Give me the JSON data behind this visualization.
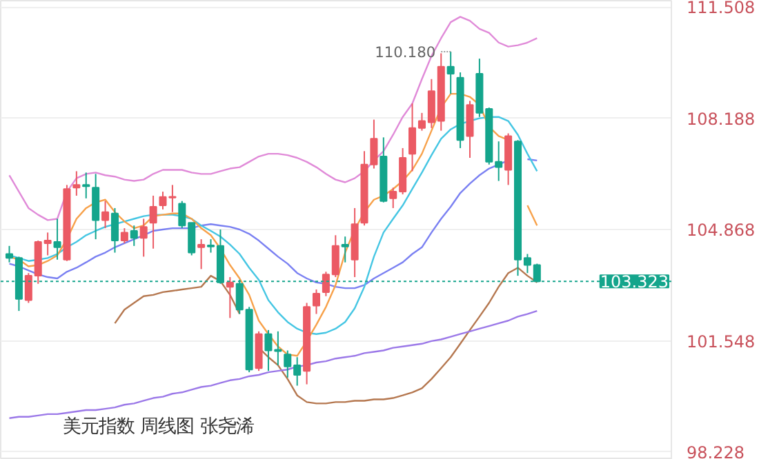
{
  "chart_data": {
    "type": "candlestick",
    "title": "美元指数 周线图 张尧浠",
    "categories": [
      null,
      null,
      null,
      null,
      null,
      null,
      null,
      null,
      null,
      null,
      null,
      null,
      null,
      null,
      null,
      null,
      null,
      null,
      null,
      null,
      null,
      null,
      null,
      null,
      null,
      null,
      null,
      null,
      null,
      null,
      null,
      null,
      null,
      null,
      null,
      null,
      null,
      null,
      null,
      null,
      null,
      null,
      null,
      null,
      null,
      null,
      null,
      null,
      null,
      null,
      null,
      null,
      null,
      null,
      null,
      null
    ],
    "ohlc": [
      [
        104.14,
        104.38,
        103.89,
        104.02
      ],
      [
        104.02,
        104.06,
        102.44,
        102.8
      ],
      [
        102.76,
        103.57,
        102.68,
        103.49
      ],
      [
        103.49,
        104.54,
        103.25,
        104.5
      ],
      [
        104.46,
        104.78,
        104.1,
        104.54
      ],
      [
        104.5,
        105.19,
        103.97,
        104.34
      ],
      [
        103.97,
        106.2,
        103.93,
        106.08
      ],
      [
        106.12,
        106.61,
        105.88,
        106.2
      ],
      [
        106.2,
        106.57,
        105.8,
        106.16
      ],
      [
        106.12,
        106.53,
        104.58,
        105.15
      ],
      [
        105.15,
        105.72,
        104.91,
        105.39
      ],
      [
        105.35,
        105.51,
        104.18,
        104.54
      ],
      [
        104.54,
        104.91,
        104.46,
        104.78
      ],
      [
        104.83,
        104.99,
        104.38,
        104.62
      ],
      [
        104.62,
        105.19,
        104.06,
        104.95
      ],
      [
        105.07,
        105.88,
        104.3,
        105.55
      ],
      [
        105.59,
        106.0,
        105.47,
        105.84
      ],
      [
        105.82,
        106.2,
        105.39,
        105.85
      ],
      [
        105.64,
        105.72,
        104.91,
        104.99
      ],
      [
        105.07,
        105.07,
        104.1,
        104.18
      ],
      [
        104.34,
        104.58,
        103.69,
        104.42
      ],
      [
        104.4,
        104.58,
        104.18,
        104.36
      ],
      [
        104.38,
        104.87,
        103.25,
        103.29
      ],
      [
        103.16,
        103.45,
        102.23,
        103.29
      ],
      [
        103.25,
        103.37,
        102.35,
        102.48
      ],
      [
        102.48,
        102.56,
        100.61,
        100.69
      ],
      [
        100.73,
        101.83,
        100.65,
        101.75
      ],
      [
        101.75,
        101.87,
        100.65,
        101.26
      ],
      [
        101.28,
        101.83,
        100.82,
        101.24
      ],
      [
        101.14,
        101.26,
        100.45,
        100.78
      ],
      [
        100.82,
        101.06,
        100.21,
        100.53
      ],
      [
        100.65,
        102.68,
        100.25,
        102.56
      ],
      [
        102.6,
        103.08,
        102.35,
        102.96
      ],
      [
        103.0,
        103.61,
        102.88,
        103.53
      ],
      [
        103.53,
        104.7,
        103.45,
        104.38
      ],
      [
        104.42,
        104.66,
        103.89,
        104.36
      ],
      [
        103.97,
        105.51,
        103.45,
        105.03
      ],
      [
        105.07,
        107.21,
        104.99,
        106.81
      ],
      [
        106.81,
        108.15,
        106.69,
        107.58
      ],
      [
        107.05,
        107.62,
        105.68,
        105.72
      ],
      [
        105.8,
        106.12,
        105.51,
        106.0
      ],
      [
        106.0,
        107.3,
        105.92,
        107.01
      ],
      [
        107.13,
        108.63,
        106.61,
        107.9
      ],
      [
        107.9,
        108.35,
        107.82,
        108.11
      ],
      [
        108.07,
        109.36,
        107.9,
        109.0
      ],
      [
        108.11,
        110.13,
        107.82,
        109.73
      ],
      [
        109.73,
        110.18,
        108.92,
        109.52
      ],
      [
        109.4,
        109.56,
        107.3,
        107.54
      ],
      [
        107.66,
        108.71,
        107.01,
        108.59
      ],
      [
        109.52,
        109.97,
        108.23,
        108.35
      ],
      [
        108.47,
        108.51,
        106.81,
        106.89
      ],
      [
        106.89,
        107.5,
        106.32,
        106.73
      ],
      [
        106.65,
        107.74,
        106.2,
        107.66
      ],
      [
        107.5,
        107.54,
        103.49,
        103.97
      ],
      [
        104.02,
        104.14,
        103.57,
        103.81
      ],
      [
        103.81,
        103.85,
        103.3,
        103.323
      ]
    ],
    "series": [
      {
        "type": "line",
        "color": "#e08ad8",
        "values": [
          106.49,
          106.0,
          105.51,
          105.31,
          105.15,
          105.19,
          106.0,
          106.4,
          106.53,
          106.57,
          106.49,
          106.45,
          106.36,
          106.32,
          106.36,
          106.53,
          106.65,
          106.65,
          106.65,
          106.57,
          106.53,
          106.53,
          106.61,
          106.69,
          106.73,
          106.89,
          107.05,
          107.13,
          107.13,
          107.09,
          107.01,
          106.89,
          106.73,
          106.53,
          106.36,
          106.28,
          106.4,
          106.61,
          106.93,
          107.21,
          107.7,
          108.23,
          108.63,
          109.36,
          110.05,
          110.58,
          111.06,
          111.22,
          111.1,
          110.86,
          110.74,
          110.45,
          110.33,
          110.37,
          110.45,
          110.58
        ]
      },
      {
        "type": "line",
        "color": "#b5774f",
        "values": [
          null,
          null,
          null,
          null,
          null,
          null,
          null,
          null,
          null,
          null,
          null,
          102.07,
          102.48,
          102.68,
          102.88,
          102.92,
          103.0,
          103.04,
          103.08,
          103.12,
          103.16,
          103.49,
          103.33,
          102.92,
          102.35,
          null,
          101.34,
          101.06,
          100.82,
          100.41,
          99.92,
          99.72,
          99.68,
          99.68,
          99.72,
          99.72,
          99.76,
          99.76,
          99.8,
          99.8,
          99.84,
          99.92,
          100.01,
          100.13,
          100.41,
          100.73,
          101.06,
          101.46,
          101.87,
          102.27,
          102.68,
          103.16,
          103.57,
          103.73,
          103.49,
          103.29
        ]
      },
      {
        "type": "line",
        "color": "#9b78e8",
        "values": [
          99.24,
          99.28,
          99.28,
          99.32,
          99.36,
          99.36,
          99.4,
          99.44,
          99.48,
          99.48,
          99.52,
          99.56,
          99.64,
          99.68,
          99.76,
          99.84,
          99.88,
          99.97,
          100.01,
          100.09,
          100.17,
          100.21,
          100.29,
          100.37,
          100.41,
          100.49,
          100.53,
          100.61,
          100.65,
          100.69,
          100.78,
          100.82,
          100.9,
          100.94,
          101.02,
          101.06,
          101.1,
          101.18,
          101.22,
          101.26,
          101.34,
          101.38,
          101.42,
          101.46,
          101.54,
          101.59,
          101.67,
          101.75,
          101.83,
          101.91,
          101.99,
          102.07,
          102.15,
          102.27,
          102.35,
          102.44
        ]
      },
      {
        "type": "line",
        "color": "#7a80f2",
        "values": [
          103.85,
          103.77,
          103.65,
          103.53,
          103.45,
          103.41,
          103.61,
          103.73,
          103.89,
          104.06,
          104.18,
          104.34,
          104.46,
          104.58,
          104.7,
          104.83,
          104.87,
          104.91,
          104.91,
          104.91,
          104.99,
          105.03,
          104.99,
          104.95,
          104.87,
          104.74,
          104.54,
          104.3,
          104.06,
          103.85,
          103.57,
          103.41,
          103.29,
          103.25,
          103.16,
          103.12,
          103.12,
          103.21,
          103.41,
          103.57,
          103.73,
          103.89,
          104.14,
          104.34,
          104.78,
          105.19,
          105.55,
          105.96,
          106.24,
          106.49,
          106.69,
          106.81,
          106.93,
          null,
          106.97,
          106.93
        ]
      },
      {
        "type": "line",
        "color": "#45c6e3",
        "values": [
          104.1,
          104.02,
          103.93,
          103.97,
          104.02,
          104.14,
          104.34,
          104.5,
          104.7,
          104.83,
          104.95,
          105.03,
          105.11,
          105.19,
          105.27,
          105.31,
          105.31,
          105.31,
          105.27,
          105.19,
          104.99,
          104.83,
          104.66,
          104.42,
          104.14,
          103.73,
          103.37,
          102.76,
          102.4,
          102.11,
          101.91,
          101.79,
          101.75,
          101.79,
          101.91,
          102.11,
          102.52,
          103.16,
          104.06,
          104.78,
          105.19,
          105.59,
          106.08,
          106.57,
          107.09,
          107.58,
          107.86,
          108.02,
          108.11,
          108.19,
          108.23,
          108.23,
          108.11,
          107.7,
          107.13,
          106.61
        ]
      },
      {
        "type": "line",
        "color": "#f7a14a",
        "values": [
          104.06,
          103.97,
          103.77,
          103.81,
          103.93,
          104.1,
          104.58,
          105.19,
          105.51,
          105.68,
          105.76,
          105.39,
          105.11,
          104.91,
          104.99,
          105.27,
          105.31,
          105.35,
          105.35,
          105.19,
          104.91,
          104.7,
          104.3,
          103.81,
          103.41,
          102.92,
          102.15,
          101.75,
          101.38,
          101.14,
          101.1,
          101.54,
          102.03,
          102.56,
          103.21,
          104.18,
          104.87,
          105.39,
          105.76,
          105.88,
          106.08,
          106.32,
          106.65,
          107.13,
          107.82,
          108.51,
          108.92,
          108.92,
          108.83,
          108.59,
          107.94,
          107.66,
          107.54,
          null,
          105.59,
          104.99
        ]
      }
    ],
    "ylim": [
      98.0,
      111.7
    ],
    "yticks": [
      98.228,
      101.548,
      104.868,
      108.188,
      111.508
    ],
    "ref_lines": [
      {
        "axis": "y",
        "value": 103.323,
        "label": "103.323",
        "color": "#14a58c",
        "line_style": "dotted"
      }
    ],
    "annotations": [
      "110.180"
    ],
    "grid": "y",
    "tick_labels": "y"
  }
}
